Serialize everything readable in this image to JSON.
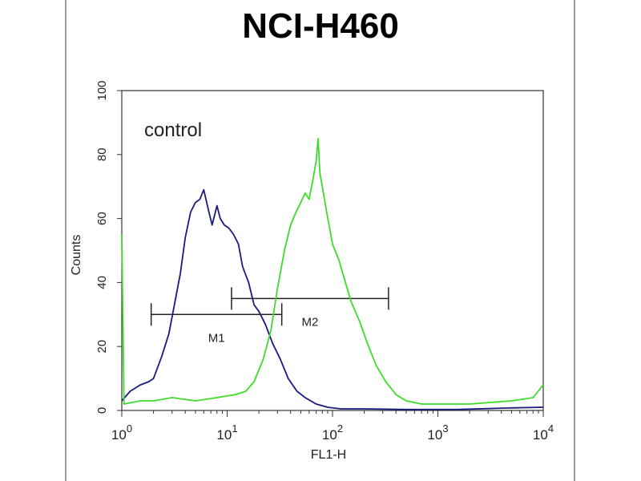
{
  "chart_data": {
    "type": "line",
    "title": "NCI-H460",
    "xlabel": "FL1-H",
    "ylabel": "Counts",
    "x_scale": "log",
    "xlim": [
      1,
      10000
    ],
    "ylim": [
      0,
      100
    ],
    "x_ticks": [
      {
        "value": 1,
        "base": "10",
        "exp": "0"
      },
      {
        "value": 10,
        "base": "10",
        "exp": "1"
      },
      {
        "value": 100,
        "base": "10",
        "exp": "2"
      },
      {
        "value": 1000,
        "base": "10",
        "exp": "3"
      },
      {
        "value": 10000,
        "base": "10",
        "exp": "4"
      }
    ],
    "y_ticks": [
      "0",
      "20",
      "40",
      "60",
      "80",
      "100"
    ],
    "annotation": "control",
    "series": [
      {
        "color": "#1a1a80",
        "points": [
          [
            1.0,
            3
          ],
          [
            1.2,
            6
          ],
          [
            1.5,
            8
          ],
          [
            1.8,
            9
          ],
          [
            2.0,
            10
          ],
          [
            2.4,
            17
          ],
          [
            2.8,
            24
          ],
          [
            3.2,
            34
          ],
          [
            3.6,
            43
          ],
          [
            4.0,
            54
          ],
          [
            4.5,
            62
          ],
          [
            5.0,
            65
          ],
          [
            5.5,
            66
          ],
          [
            6.0,
            69
          ],
          [
            6.6,
            63
          ],
          [
            7.2,
            58
          ],
          [
            8.0,
            64
          ],
          [
            8.6,
            60
          ],
          [
            9.4,
            58
          ],
          [
            10.4,
            57
          ],
          [
            11.5,
            55
          ],
          [
            12.8,
            52
          ],
          [
            14.0,
            45
          ],
          [
            16.0,
            40
          ],
          [
            18.0,
            33
          ],
          [
            20.0,
            31
          ],
          [
            23.0,
            27
          ],
          [
            27.0,
            21
          ],
          [
            32.0,
            16
          ],
          [
            38.0,
            10
          ],
          [
            46.0,
            6
          ],
          [
            55.0,
            4
          ],
          [
            70.0,
            2
          ],
          [
            90.0,
            1
          ],
          [
            120.0,
            0.5
          ],
          [
            200.0,
            0.5
          ],
          [
            500.0,
            0.3
          ],
          [
            1500.0,
            0.3
          ],
          [
            5000.0,
            0.8
          ],
          [
            10000.0,
            1
          ]
        ]
      },
      {
        "color": "#3ddc2a",
        "points": [
          [
            1.0,
            55
          ],
          [
            1.05,
            2
          ],
          [
            1.5,
            3
          ],
          [
            2.0,
            3
          ],
          [
            3.0,
            4
          ],
          [
            5.0,
            3
          ],
          [
            8.0,
            4
          ],
          [
            12.0,
            5
          ],
          [
            15.0,
            6
          ],
          [
            18.0,
            9
          ],
          [
            22.0,
            16
          ],
          [
            26.0,
            25
          ],
          [
            30.0,
            38
          ],
          [
            35.0,
            50
          ],
          [
            40.0,
            58
          ],
          [
            45.0,
            62
          ],
          [
            50.0,
            65
          ],
          [
            55.0,
            68
          ],
          [
            60.0,
            66
          ],
          [
            65.0,
            72
          ],
          [
            70.0,
            78
          ],
          [
            73.0,
            85
          ],
          [
            76.0,
            74
          ],
          [
            80.0,
            70
          ],
          [
            88.0,
            62
          ],
          [
            100.0,
            52
          ],
          [
            115.0,
            47
          ],
          [
            130.0,
            41
          ],
          [
            150.0,
            34
          ],
          [
            180.0,
            28
          ],
          [
            220.0,
            20
          ],
          [
            260.0,
            14
          ],
          [
            320.0,
            9
          ],
          [
            400.0,
            5
          ],
          [
            500.0,
            3
          ],
          [
            700.0,
            2
          ],
          [
            1000.0,
            2
          ],
          [
            2000.0,
            2
          ],
          [
            5000.0,
            3
          ],
          [
            8000.0,
            4
          ],
          [
            10000.0,
            8
          ]
        ]
      }
    ],
    "gates": [
      {
        "label": "M1",
        "x1": 1.9,
        "x2": 33,
        "y": 30
      },
      {
        "label": "M2",
        "x1": 11,
        "x2": 340,
        "y": 35
      }
    ]
  }
}
